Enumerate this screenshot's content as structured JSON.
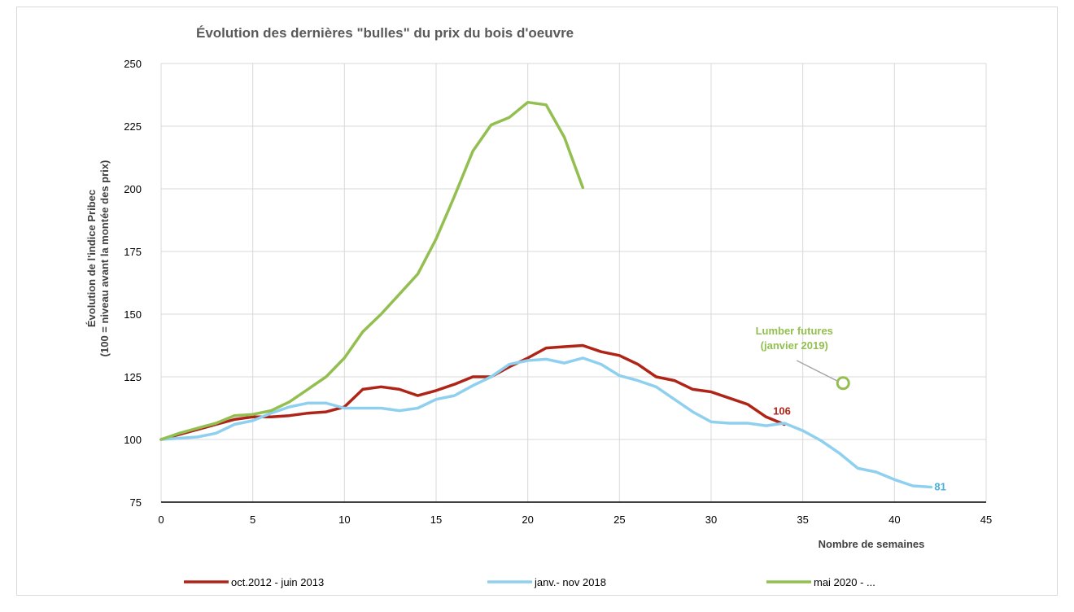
{
  "chart_data": {
    "type": "line",
    "title": "Évolution des dernières \"bulles\" du prix du bois d'oeuvre",
    "xlabel": "Nombre de semaines",
    "ylabel_line1": "Évolution de l'indice Pribec",
    "ylabel_line2": "(100 = niveau avant la montée des prix)",
    "xlim": [
      0,
      45
    ],
    "ylim": [
      75,
      250
    ],
    "x_ticks": [
      0,
      5,
      10,
      15,
      20,
      25,
      30,
      35,
      40,
      45
    ],
    "y_ticks": [
      75,
      100,
      125,
      150,
      175,
      200,
      225,
      250
    ],
    "grid": true,
    "legend_position": "bottom",
    "series": [
      {
        "name": "oct.2012 - juin 2013",
        "color": "#b02418",
        "x": [
          0,
          1,
          2,
          3,
          4,
          5,
          6,
          7,
          8,
          9,
          10,
          11,
          12,
          13,
          14,
          15,
          16,
          17,
          18,
          19,
          20,
          21,
          22,
          23,
          24,
          25,
          26,
          27,
          28,
          29,
          30,
          31,
          32,
          33,
          34
        ],
        "values": [
          100,
          102,
          104,
          106,
          108,
          109,
          109,
          109.5,
          110.5,
          111,
          113,
          120,
          121,
          120,
          117.5,
          119.5,
          122,
          125,
          125,
          129,
          132.5,
          136.5,
          137,
          137.5,
          135,
          133.5,
          130,
          125,
          123.5,
          120,
          119,
          116.5,
          114,
          109,
          106
        ]
      },
      {
        "name": "janv.- nov 2018",
        "color": "#8fd0ef",
        "x": [
          0,
          1,
          2,
          3,
          4,
          5,
          6,
          7,
          8,
          9,
          10,
          11,
          12,
          13,
          14,
          15,
          16,
          17,
          18,
          19,
          20,
          21,
          22,
          23,
          24,
          25,
          26,
          27,
          28,
          29,
          30,
          31,
          32,
          33,
          34,
          35,
          36,
          37,
          38,
          39,
          40,
          41,
          42
        ],
        "values": [
          100,
          100.5,
          101,
          102.5,
          106,
          107.5,
          110.5,
          113,
          114.5,
          114.5,
          112.5,
          112.5,
          112.5,
          111.5,
          112.5,
          116,
          117.5,
          121.5,
          125,
          130,
          131.5,
          132,
          130.5,
          132.5,
          130,
          125.5,
          123.5,
          121,
          116,
          111,
          107,
          106.5,
          106.5,
          105.5,
          106.5,
          103.5,
          99.5,
          94.5,
          88.5,
          87,
          84,
          81.5,
          81
        ]
      },
      {
        "name": "mai 2020 - ...",
        "color": "#92bf50",
        "x": [
          0,
          1,
          2,
          3,
          4,
          5,
          6,
          7,
          8,
          9,
          10,
          11,
          12,
          13,
          14,
          15,
          16,
          17,
          18,
          19,
          20,
          21,
          22,
          23
        ],
        "values": [
          100,
          102.5,
          104.5,
          106.5,
          109.5,
          110,
          111.5,
          115,
          120,
          125,
          132.5,
          143,
          150,
          158,
          166,
          180,
          197,
          215,
          225.5,
          228.5,
          234.5,
          233.5,
          220.5,
          200.5
        ]
      }
    ],
    "end_labels": [
      {
        "series": 0,
        "text": "106",
        "x": 34,
        "y": 106
      },
      {
        "series": 1,
        "text": "81",
        "x": 42,
        "y": 81
      }
    ],
    "annotation": {
      "line1": "Lumber futures",
      "line2": "(janvier 2019)",
      "color": "#92bf50",
      "marker_x": 37.2,
      "marker_y": 122.5
    }
  }
}
